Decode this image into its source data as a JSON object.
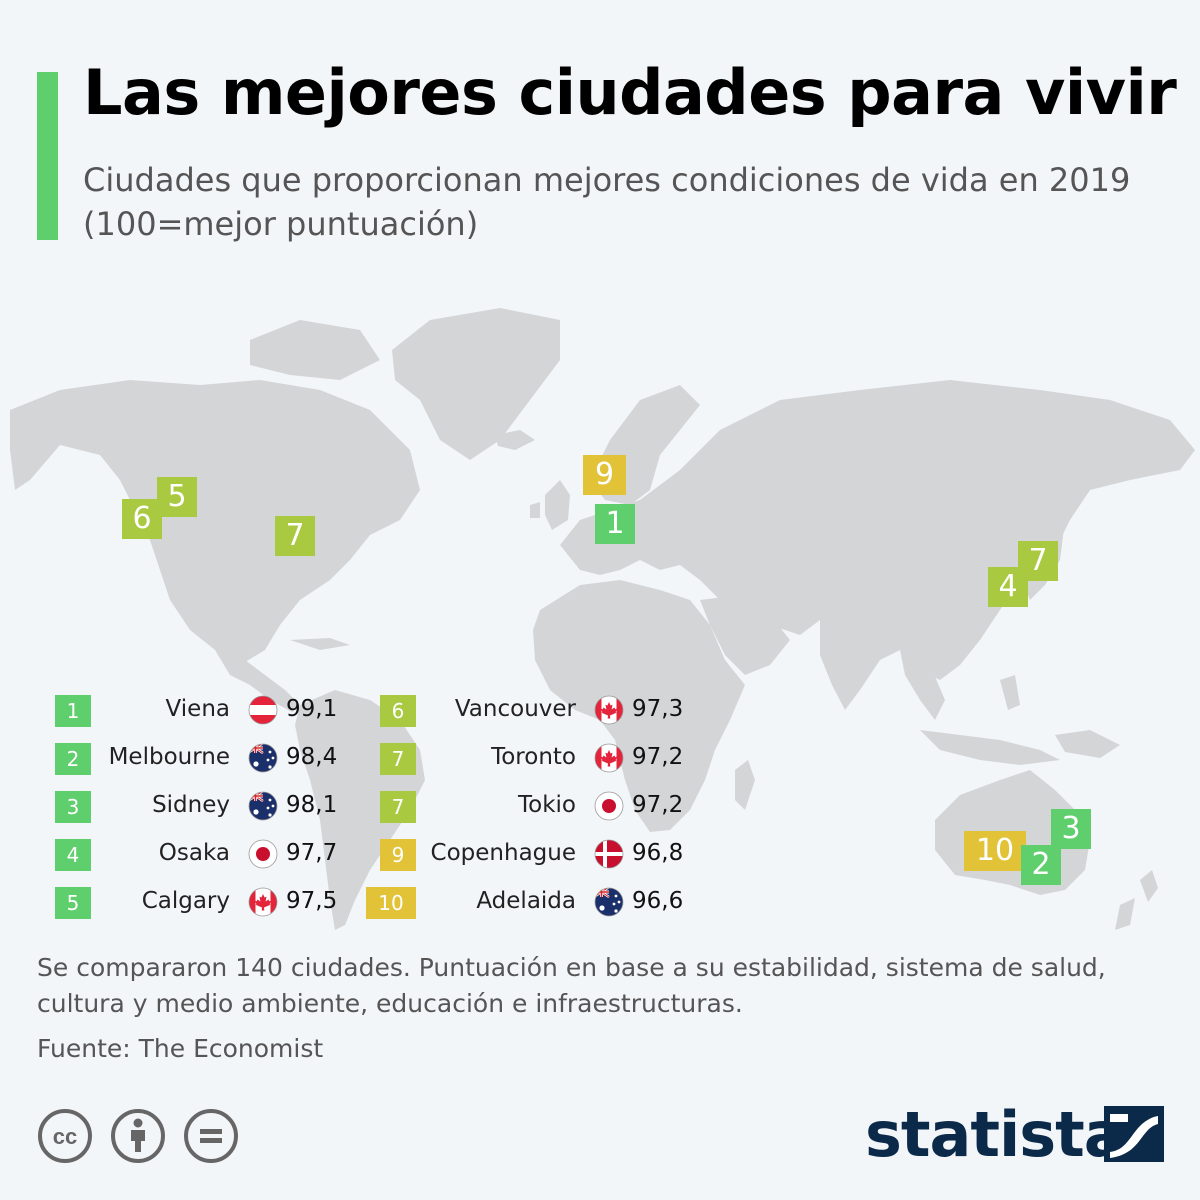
{
  "header": {
    "title": "Las mejores ciudades para vivir",
    "subtitle": "Ciudades que proporcionan mejores condiciones de vida en 2019 (100=mejor puntuación)"
  },
  "colors": {
    "accent": "#5fce6c",
    "rank_1_5": "#5fce6c",
    "rank_6_8": "#a9c941",
    "rank_9_10": "#e2c338",
    "land": "#d3d5d7",
    "background": "#f3f6f9"
  },
  "map_markers": [
    {
      "rank": "9",
      "city": "Copenhague"
    },
    {
      "rank": "1",
      "city": "Viena"
    },
    {
      "rank": "5",
      "city": "Calgary"
    },
    {
      "rank": "6",
      "city": "Vancouver"
    },
    {
      "rank": "7",
      "city": "Toronto"
    },
    {
      "rank": "7",
      "city": "Tokio"
    },
    {
      "rank": "4",
      "city": "Osaka"
    },
    {
      "rank": "3",
      "city": "Sidney"
    },
    {
      "rank": "10",
      "city": "Adelaida"
    },
    {
      "rank": "2",
      "city": "Melbourne"
    }
  ],
  "legend": {
    "col1": [
      {
        "rank": "1",
        "city": "Viena",
        "flag": "austria-flag-icon",
        "score": "99,1"
      },
      {
        "rank": "2",
        "city": "Melbourne",
        "flag": "australia-flag-icon",
        "score": "98,4"
      },
      {
        "rank": "3",
        "city": "Sidney",
        "flag": "australia-flag-icon",
        "score": "98,1"
      },
      {
        "rank": "4",
        "city": "Osaka",
        "flag": "japan-flag-icon",
        "score": "97,7"
      },
      {
        "rank": "5",
        "city": "Calgary",
        "flag": "canada-flag-icon",
        "score": "97,5"
      }
    ],
    "col2": [
      {
        "rank": "6",
        "city": "Vancouver",
        "flag": "canada-flag-icon",
        "score": "97,3"
      },
      {
        "rank": "7",
        "city": "Toronto",
        "flag": "canada-flag-icon",
        "score": "97,2"
      },
      {
        "rank": "7",
        "city": "Tokio",
        "flag": "japan-flag-icon",
        "score": "97,2"
      },
      {
        "rank": "9",
        "city": "Copenhague",
        "flag": "denmark-flag-icon",
        "score": "96,8"
      },
      {
        "rank": "10",
        "city": "Adelaida",
        "flag": "australia-flag-icon",
        "score": "96,6"
      }
    ]
  },
  "footer": {
    "note": "Se compararon 140 ciudades. Puntuación en base a su estabilidad, sistema de salud, cultura y medio ambiente, educación e infraestructuras.",
    "source": "Fuente: The Economist",
    "license_icons": [
      "cc-icon",
      "attribution-icon",
      "no-derivatives-icon"
    ],
    "logo": "statista"
  }
}
